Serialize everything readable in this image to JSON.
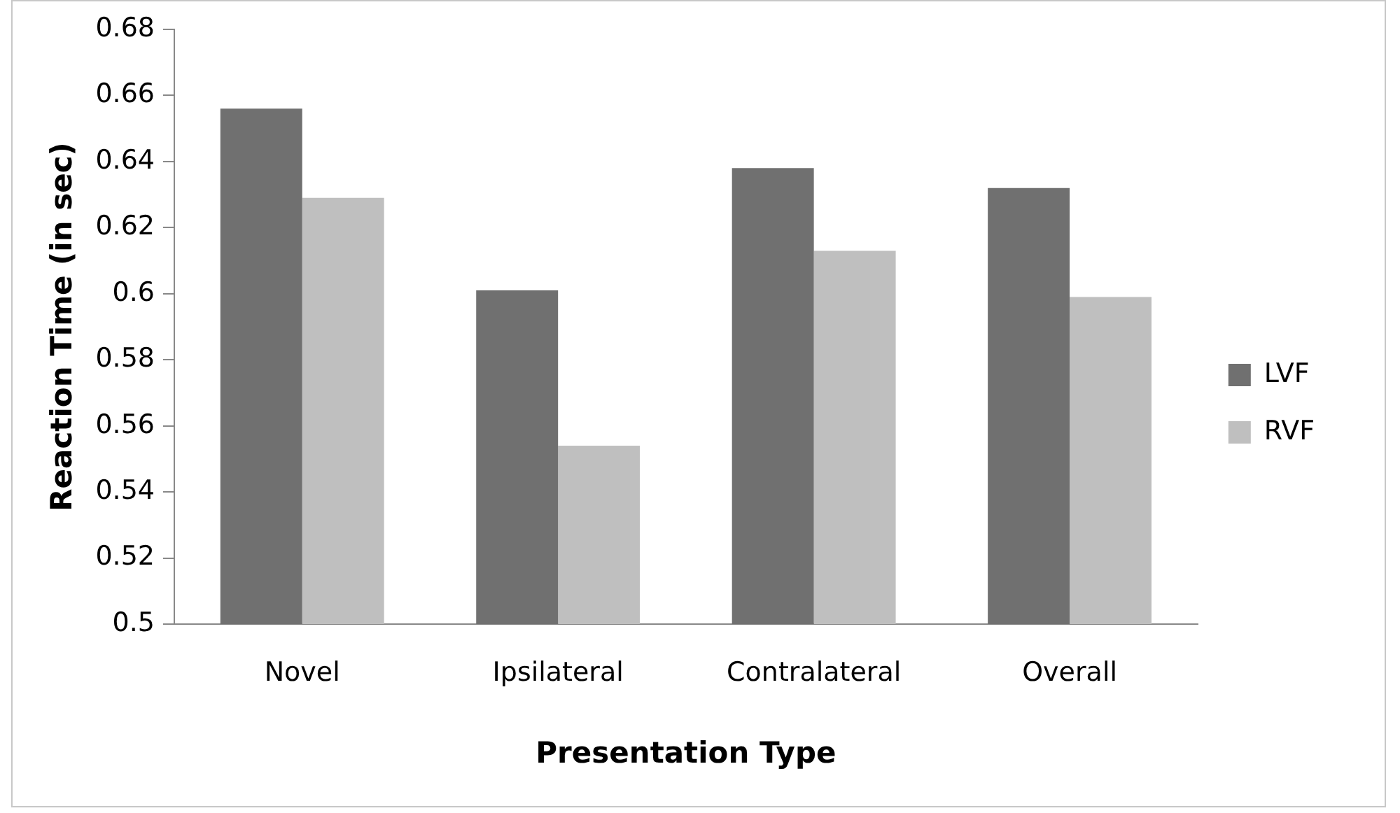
{
  "chart_data": {
    "type": "bar",
    "xlabel": "Presentation Type",
    "ylabel": "Reaction Time (in sec)",
    "categories": [
      "Novel",
      "Ipsilateral",
      "Contralateral",
      "Overall"
    ],
    "series": [
      {
        "name": "LVF",
        "color": "#707070",
        "values": [
          0.656,
          0.601,
          0.638,
          0.632
        ]
      },
      {
        "name": "RVF",
        "color": "#bfbfbf",
        "values": [
          0.629,
          0.554,
          0.613,
          0.599
        ]
      }
    ],
    "ylim": [
      0.5,
      0.68
    ],
    "yticks": [
      0.5,
      0.52,
      0.54,
      0.56,
      0.58,
      0.6,
      0.62,
      0.64,
      0.66,
      0.68
    ],
    "grid": false,
    "legend": "right"
  }
}
